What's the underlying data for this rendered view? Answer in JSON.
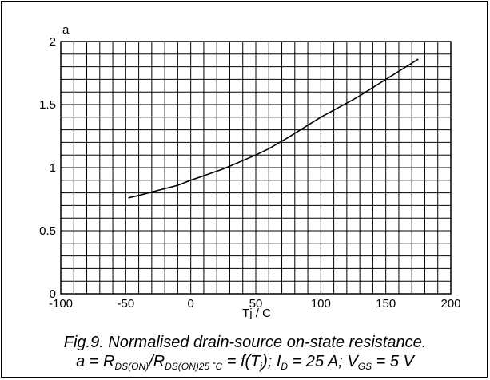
{
  "chart_data": {
    "type": "line",
    "ylabel": "a",
    "xlabel": "Tj / C",
    "xlim": [
      -100,
      200
    ],
    "ylim": [
      0,
      2
    ],
    "x_ticks": [
      -100,
      -50,
      0,
      50,
      100,
      150,
      200
    ],
    "x_tick_labels": [
      "-100",
      "-50",
      "0",
      "50",
      "100",
      "150",
      "200"
    ],
    "y_ticks": [
      0,
      0.5,
      1,
      1.5,
      2
    ],
    "y_tick_labels": [
      "0",
      "0.5",
      "1",
      "1.5",
      "2"
    ],
    "grid": true,
    "grid_minor_x_step": 10,
    "grid_minor_y_step": 0.1,
    "series": [
      {
        "color": "#000000",
        "x": [
          -48,
          -40,
          -25,
          -10,
          0,
          25,
          50,
          60,
          75,
          100,
          125,
          130,
          150,
          175
        ],
        "y": [
          0.76,
          0.78,
          0.82,
          0.86,
          0.9,
          0.99,
          1.1,
          1.15,
          1.24,
          1.4,
          1.54,
          1.57,
          1.7,
          1.86
        ]
      }
    ]
  },
  "caption": {
    "line1": "Fig.9.   Normalised drain-source on-state resistance.",
    "line2": {
      "p1": "a = R",
      "s1": "DS(ON)",
      "p2": "/R",
      "s2": "DS(ON)25 ˚C",
      "p3": " = f(T",
      "s3": "j",
      "p4": "); I",
      "s4": "D",
      "p5": " = 25 A; V",
      "s5": "GS",
      "p6": " = 5 V"
    }
  }
}
